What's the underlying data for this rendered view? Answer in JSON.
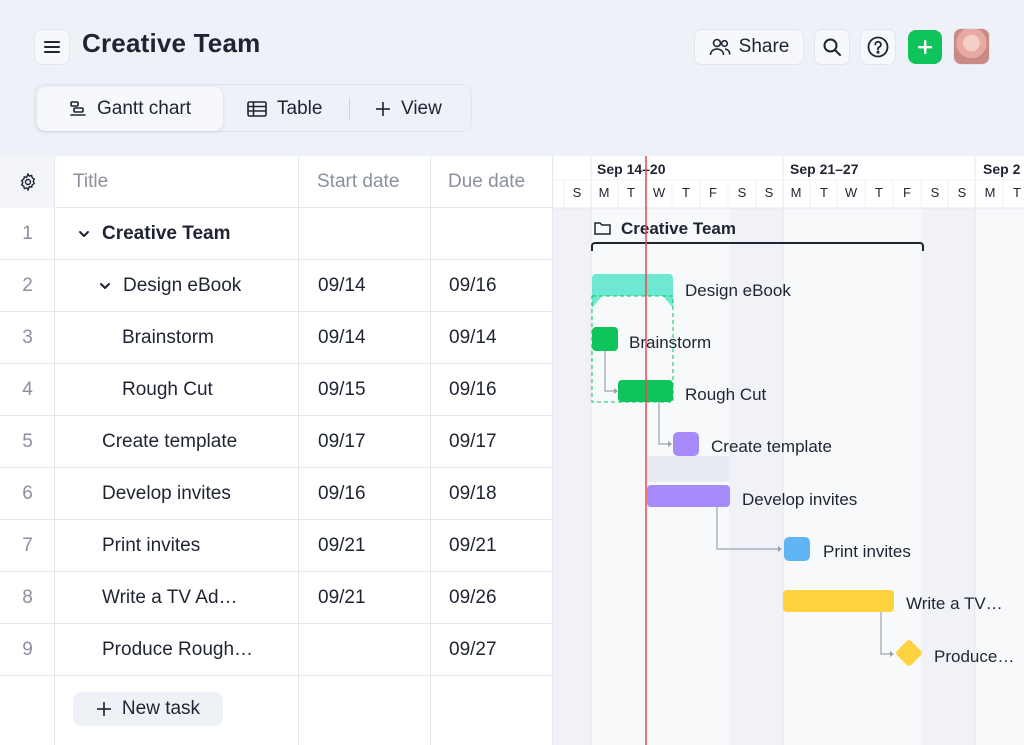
{
  "header": {
    "title": "Creative Team",
    "share_label": "Share",
    "menu_icon": "hamburger-icon",
    "add_icon": "plus-icon",
    "accent_green": "#10c45c"
  },
  "views": {
    "tabs": [
      {
        "label": "Gantt chart",
        "icon": "gantt-icon",
        "active": true
      },
      {
        "label": "Table",
        "icon": "table-icon",
        "active": false
      }
    ],
    "add_view_label": "View"
  },
  "table": {
    "columns": [
      "Title",
      "Start date",
      "Due date"
    ],
    "rows": [
      {
        "num": "1",
        "title": "Creative Team",
        "start": "",
        "due": ""
      },
      {
        "num": "2",
        "title": "Design eBook",
        "start": "09/14",
        "due": "09/16"
      },
      {
        "num": "3",
        "title": "Brainstorm",
        "start": "09/14",
        "due": "09/14"
      },
      {
        "num": "4",
        "title": "Rough Cut",
        "start": "09/15",
        "due": "09/16"
      },
      {
        "num": "5",
        "title": "Create template",
        "start": "09/17",
        "due": "09/17"
      },
      {
        "num": "6",
        "title": "Develop invites",
        "start": "09/16",
        "due": "09/18"
      },
      {
        "num": "7",
        "title": "Print invites",
        "start": "09/21",
        "due": "09/21"
      },
      {
        "num": "8",
        "title": "Write a TV Ad…",
        "start": "09/21",
        "due": "09/26"
      },
      {
        "num": "9",
        "title": "Produce Rough…",
        "start": "",
        "due": "09/27"
      }
    ],
    "new_task_label": "New task"
  },
  "gantt": {
    "weeks": [
      "Sep 14–20",
      "Sep 21–27",
      "Sep 2"
    ],
    "day_letters": [
      "S",
      "M",
      "T",
      "W",
      "T",
      "F",
      "S",
      "S",
      "M",
      "T",
      "W",
      "T",
      "F",
      "S",
      "S",
      "M",
      "T"
    ],
    "group_label": "Creative Team",
    "bar_labels": [
      "Design eBook",
      "Brainstorm",
      "Rough Cut",
      "Create template",
      "Develop invites",
      "Print invites",
      "Write a TV…",
      "Produce…"
    ],
    "colors": {
      "group": "#6ee7d3",
      "brainstorm": "#10c45c",
      "template": "#a78bfa",
      "invites": "#a78bfa",
      "print": "#60b5f5",
      "tv": "#ffd23f",
      "today_line": "#ef4444"
    }
  }
}
